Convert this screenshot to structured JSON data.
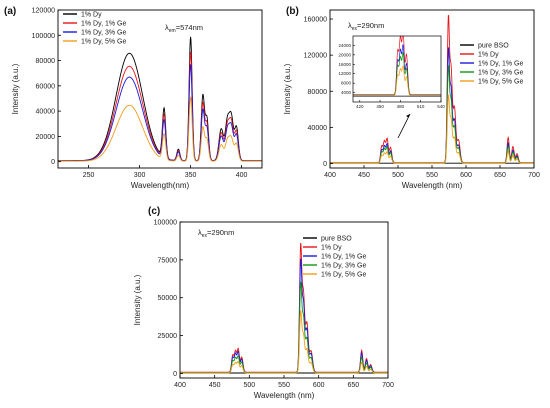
{
  "colors": {
    "pure_bso": "#000000",
    "dy": "#e8141b",
    "dy_ge1": "#1a1adc",
    "dy_ge3": "#129612",
    "dy_ge5": "#f59c1a",
    "axis": "#000000"
  },
  "chart_data": [
    {
      "id": "a",
      "panel_label": "(a)",
      "type": "line",
      "annotation": {
        "text": "λ",
        "sub": "em",
        "rest": "=574nm"
      },
      "xlabel": "Wavelength(nm)",
      "ylabel": "Intensity (a.u.)",
      "xlim": [
        220,
        420
      ],
      "ylim": [
        -5000,
        120000
      ],
      "xticks": [
        250,
        300,
        350,
        400
      ],
      "yticks": [
        0,
        20000,
        40000,
        60000,
        80000,
        100000,
        120000
      ],
      "legend_position": "top-left",
      "series": [
        {
          "name": "1% Dy",
          "color_key": "dy",
          "legend_color": "#000000",
          "peak_scale": 1.0
        },
        {
          "name": "1% Dy, 1% Ge",
          "color_key": "dy",
          "legend_color": "#e8141b",
          "peak_scale": 0.88
        },
        {
          "name": "1% Dy, 3% Ge",
          "color_key": "dy_ge1",
          "legend_color": "#1a1adc",
          "peak_scale": 0.78
        },
        {
          "name": "1% Dy, 5% Ge",
          "color_key": "dy_ge5",
          "legend_color": "#f59c1a",
          "peak_scale": 0.52
        }
      ],
      "peaks": [
        {
          "center": 290,
          "value": 85000,
          "width": 13
        },
        {
          "center": 324,
          "value": 39000,
          "width": 1.6
        },
        {
          "center": 338,
          "value": 9000,
          "width": 1.5
        },
        {
          "center": 350,
          "value": 98000,
          "width": 1.5
        },
        {
          "center": 362,
          "value": 51000,
          "width": 1.6
        },
        {
          "center": 366,
          "value": 33000,
          "width": 1.6
        },
        {
          "center": 380,
          "value": 25000,
          "width": 2.2
        },
        {
          "center": 386,
          "value": 30000,
          "width": 2.0
        },
        {
          "center": 390,
          "value": 33000,
          "width": 2.0
        },
        {
          "center": 395,
          "value": 26000,
          "width": 1.8
        }
      ]
    },
    {
      "id": "b",
      "panel_label": "(b)",
      "type": "line",
      "annotation": {
        "text": "λ",
        "sub": "ex",
        "rest": "=290nm"
      },
      "xlabel": "Wavelength (nm)",
      "ylabel": "Intensity (a.u.)",
      "xlim": [
        400,
        700
      ],
      "ylim": [
        -5000,
        170000
      ],
      "xticks": [
        400,
        450,
        500,
        550,
        600,
        650,
        700
      ],
      "yticks": [
        0,
        40000,
        80000,
        120000,
        160000
      ],
      "legend_position": "top-right",
      "series": [
        {
          "name": "pure BSO",
          "color_key": "pure_bso",
          "peak_scale": 0.0
        },
        {
          "name": "1% Dy",
          "color_key": "dy",
          "peak_scale": 1.0
        },
        {
          "name": "1% Dy, 1% Ge",
          "color_key": "dy_ge1",
          "peak_scale": 0.78
        },
        {
          "name": "1% Dy, 3% Ge",
          "color_key": "dy_ge3",
          "peak_scale": 0.66
        },
        {
          "name": "1% Dy, 5% Ge",
          "color_key": "dy_ge5",
          "peak_scale": 0.46
        }
      ],
      "peaks": [
        {
          "center": 476,
          "value": 18000,
          "width": 1.6
        },
        {
          "center": 480,
          "value": 23000,
          "width": 1.6
        },
        {
          "center": 484,
          "value": 26000,
          "width": 1.6
        },
        {
          "center": 489,
          "value": 17000,
          "width": 1.8
        },
        {
          "center": 574,
          "value": 155000,
          "width": 1.6
        },
        {
          "center": 578,
          "value": 100000,
          "width": 1.8
        },
        {
          "center": 583,
          "value": 60000,
          "width": 2.0
        },
        {
          "center": 589,
          "value": 25000,
          "width": 2.2
        },
        {
          "center": 662,
          "value": 28000,
          "width": 1.6
        },
        {
          "center": 669,
          "value": 18000,
          "width": 1.8
        },
        {
          "center": 675,
          "value": 10000,
          "width": 1.8
        }
      ],
      "inset": {
        "xlim": [
          410,
          540
        ],
        "ylim": [
          0,
          28000
        ],
        "xticks": [
          420,
          450,
          480,
          510,
          540
        ],
        "yticks": [
          4000,
          8000,
          12000,
          16000,
          20000,
          24000
        ]
      }
    },
    {
      "id": "c",
      "panel_label": "(c)",
      "type": "line",
      "annotation": {
        "text": "λ",
        "sub": "ex",
        "rest": "=290nm"
      },
      "xlabel": "Wavelength (nm)",
      "ylabel": "Intensity (a.u.)",
      "xlim": [
        400,
        700
      ],
      "ylim": [
        -3000,
        100000
      ],
      "xticks": [
        400,
        450,
        500,
        550,
        600,
        650,
        700
      ],
      "yticks": [
        0,
        25000,
        50000,
        75000,
        100000
      ],
      "legend_position": "top-right",
      "series": [
        {
          "name": "pure BSO",
          "color_key": "pure_bso",
          "peak_scale": 0.0
        },
        {
          "name": "1% Dy",
          "color_key": "dy",
          "peak_scale": 1.0
        },
        {
          "name": "1% Dy, 1% Ge",
          "color_key": "dy_ge1",
          "peak_scale": 0.88
        },
        {
          "name": "1% Dy, 3% Ge",
          "color_key": "dy_ge3",
          "peak_scale": 0.7
        },
        {
          "name": "1% Dy, 5% Ge",
          "color_key": "dy_ge5",
          "peak_scale": 0.48
        }
      ],
      "peaks": [
        {
          "center": 476,
          "value": 11000,
          "width": 1.6
        },
        {
          "center": 480,
          "value": 13500,
          "width": 1.6
        },
        {
          "center": 484,
          "value": 15000,
          "width": 1.6
        },
        {
          "center": 489,
          "value": 10000,
          "width": 1.8
        },
        {
          "center": 574,
          "value": 81000,
          "width": 1.6
        },
        {
          "center": 578,
          "value": 50000,
          "width": 1.8
        },
        {
          "center": 583,
          "value": 32000,
          "width": 2.0
        },
        {
          "center": 589,
          "value": 14000,
          "width": 2.2
        },
        {
          "center": 662,
          "value": 14500,
          "width": 1.6
        },
        {
          "center": 669,
          "value": 9000,
          "width": 1.8
        },
        {
          "center": 675,
          "value": 5000,
          "width": 1.8
        }
      ]
    }
  ]
}
